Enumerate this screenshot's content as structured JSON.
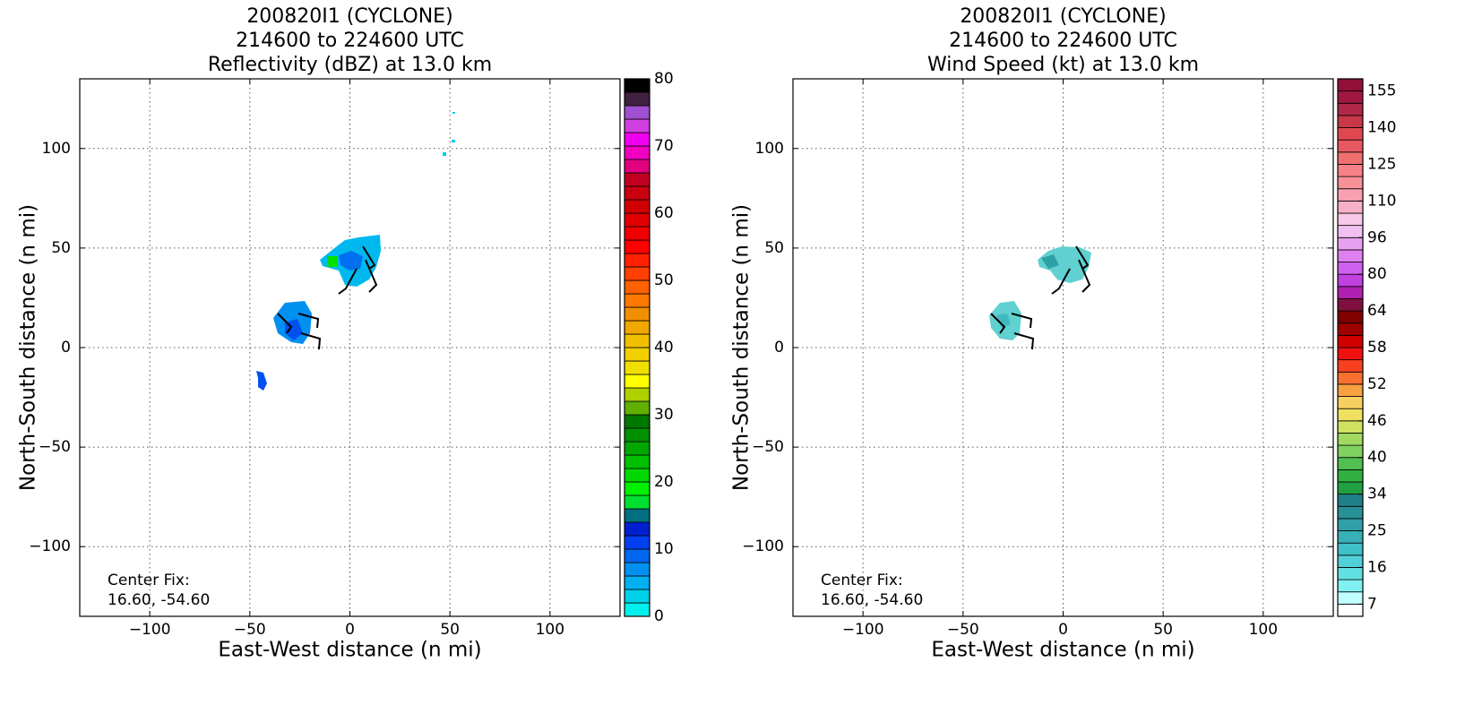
{
  "chart_data": [
    {
      "type": "image",
      "title": [
        "200820I1 (CYCLONE)",
        "214600 to 224600 UTC",
        "Reflectivity (dBZ) at 13.0 km"
      ],
      "x_label": "East-West distance (n mi)",
      "y_label": "North-South distance (n mi)",
      "annotation": [
        "Center Fix:",
        "16.60, -54.60"
      ],
      "xlim": [
        -135,
        135
      ],
      "ylim": [
        -135,
        135
      ],
      "xticks": [
        {
          "value": -100,
          "label": "−100"
        },
        {
          "value": -50,
          "label": "−50"
        },
        0,
        50,
        100
      ],
      "yticks": [
        {
          "value": -100,
          "label": "−100"
        },
        {
          "value": -50,
          "label": "−50"
        },
        0,
        50,
        100
      ],
      "grid": true,
      "colorbar": {
        "bounds": [
          0,
          2,
          4,
          6,
          8,
          10,
          12,
          14,
          16,
          18,
          20,
          22,
          24,
          26,
          28,
          30,
          32,
          34,
          36,
          38,
          40,
          42,
          44,
          46,
          48,
          50,
          52,
          54,
          56,
          58,
          60,
          62,
          64,
          66,
          68,
          70,
          72,
          74,
          76,
          78,
          80
        ],
        "colors": [
          "#00f0f0",
          "#00d0e8",
          "#00b0f0",
          "#0090f0",
          "#0068f0",
          "#0040f0",
          "#0020d0",
          "#007080",
          "#00e030",
          "#00f000",
          "#00d800",
          "#00c000",
          "#00a800",
          "#009000",
          "#007800",
          "#60b000",
          "#b0d000",
          "#ffff00",
          "#f0e000",
          "#f0d000",
          "#f0c000",
          "#f0a800",
          "#f09000",
          "#ff7800",
          "#ff6000",
          "#ff4000",
          "#ff2000",
          "#ff0000",
          "#f00000",
          "#e00000",
          "#d00000",
          "#c80010",
          "#c00020",
          "#e00080",
          "#f000c0",
          "#f000f0",
          "#d040e0",
          "#a050d0",
          "#402040",
          "#000000"
        ],
        "ticks": [
          0,
          10,
          20,
          30,
          40,
          50,
          60,
          70,
          80
        ]
      }
    },
    {
      "type": "image",
      "title": [
        "200820I1 (CYCLONE)",
        "214600 to 224600 UTC",
        "Wind Speed (kt) at 13.0 km"
      ],
      "x_label": "East-West distance (n mi)",
      "y_label": "North-South distance (n mi)",
      "annotation": [
        "Center Fix:",
        "16.60, -54.60"
      ],
      "xlim": [
        -135,
        135
      ],
      "ylim": [
        -135,
        135
      ],
      "xticks": [
        {
          "value": -100,
          "label": "−100"
        },
        {
          "value": -50,
          "label": "−50"
        },
        0,
        50,
        100
      ],
      "yticks": [
        {
          "value": -100,
          "label": "−100"
        },
        {
          "value": -50,
          "label": "−50"
        },
        0,
        50,
        100
      ],
      "grid": true,
      "colorbar": {
        "bounds": [
          4,
          7,
          10,
          13,
          16,
          19,
          22,
          25,
          28,
          31,
          34,
          36,
          38,
          40,
          42,
          44,
          46,
          48,
          50,
          52,
          54,
          56,
          58,
          60,
          62,
          64,
          69,
          74,
          80,
          85,
          90,
          96,
          101,
          105,
          110,
          115,
          120,
          125,
          130,
          135,
          140,
          145,
          150,
          155,
          160
        ],
        "colors": [
          "#ffffff",
          "#c0ffff",
          "#80f0f0",
          "#60e0e0",
          "#50d0d8",
          "#40c0c8",
          "#38b0b8",
          "#30a0a8",
          "#289098",
          "#208088",
          "#20a040",
          "#30b040",
          "#50c050",
          "#80d060",
          "#a0d860",
          "#d0e060",
          "#f0e060",
          "#f8d060",
          "#f8a040",
          "#f87030",
          "#f84020",
          "#f01010",
          "#d00000",
          "#a00000",
          "#800000",
          "#801040",
          "#b020b0",
          "#c040e0",
          "#d060f0",
          "#e080f0",
          "#e8a0f0",
          "#f0c0f0",
          "#f8c8e8",
          "#f8b0c8",
          "#f8a0b0",
          "#f89098",
          "#f88088",
          "#f07070",
          "#e85860",
          "#e04850",
          "#c83848",
          "#b02848",
          "#a01840",
          "#901038"
        ],
        "ticks": [
          7,
          16,
          25,
          34,
          40,
          46,
          52,
          58,
          64,
          80,
          96,
          110,
          125,
          140,
          155
        ]
      }
    }
  ]
}
